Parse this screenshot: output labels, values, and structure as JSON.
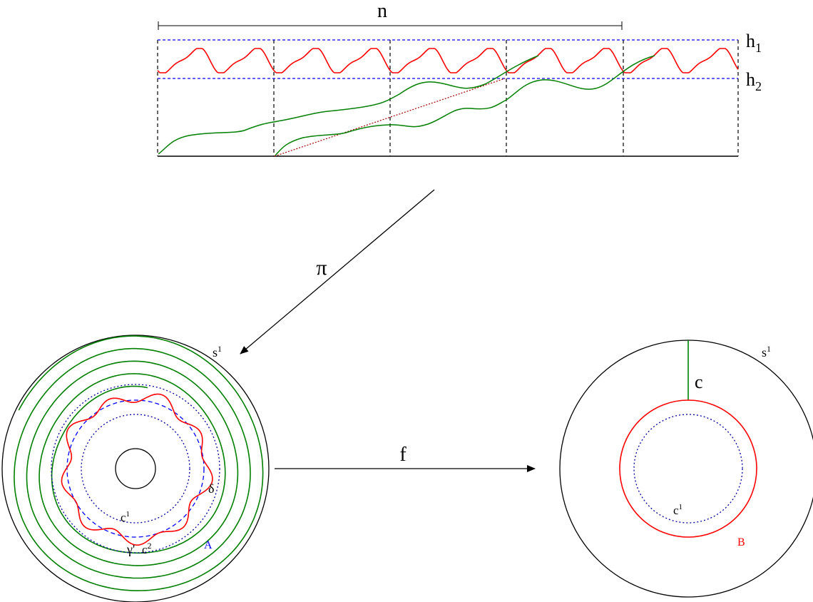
{
  "labels": {
    "n": "n",
    "h1_base": "h",
    "h1_sub": "1",
    "h2_base": "h",
    "h2_sub": "2",
    "pi": "π",
    "f": "f",
    "s1_left_base": "s",
    "s1_left_sup": "1",
    "s1_right_base": "s",
    "s1_right_sup": "1",
    "c": "c",
    "delta": "δ",
    "c1_left_base": "c",
    "c1_left_sup": "1",
    "c2_base": "c",
    "c2_sup": "2",
    "gamma_prime": "γ'",
    "A": "A",
    "c1_right_base": "c",
    "c1_right_sup": "1",
    "B": "B"
  },
  "colors": {
    "black": "#000000",
    "red": "#ff0000",
    "green": "#008000",
    "blue": "#0000ff",
    "dark_red": "#8b0000"
  }
}
